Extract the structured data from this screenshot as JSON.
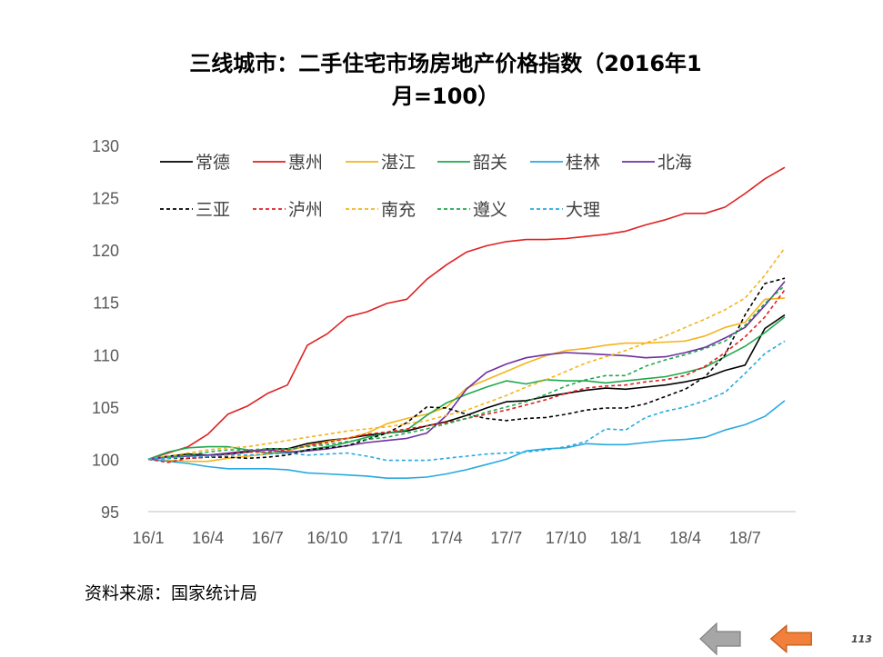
{
  "title_line1": "三线城市：二手住宅市场房地产价格指数（2016年1",
  "title_line2": "月=100）",
  "source": "资料来源：国家统计局",
  "page_number": "113",
  "nav": {
    "prev_color": "#a6a6a6",
    "next_color": "#f0803c"
  },
  "chart_data": {
    "type": "line",
    "title": "",
    "xlabel": "",
    "ylabel": "",
    "ylim": [
      95,
      130
    ],
    "yticks": [
      95,
      100,
      105,
      110,
      115,
      120,
      125,
      130
    ],
    "grid": false,
    "legend_position": "top-left",
    "x": [
      "16/1",
      "16/2",
      "16/3",
      "16/4",
      "16/5",
      "16/6",
      "16/7",
      "16/8",
      "16/9",
      "16/10",
      "16/11",
      "16/12",
      "17/1",
      "17/2",
      "17/3",
      "17/4",
      "17/5",
      "17/6",
      "17/7",
      "17/8",
      "17/9",
      "17/10",
      "17/11",
      "17/12",
      "18/1",
      "18/2",
      "18/3",
      "18/4",
      "18/5",
      "18/6",
      "18/7",
      "18/8",
      "18/9"
    ],
    "xtick_labels": [
      "16/1",
      "16/4",
      "16/7",
      "16/10",
      "17/1",
      "17/4",
      "17/7",
      "17/10",
      "18/1",
      "18/4",
      "18/7"
    ],
    "series": [
      {
        "name": "常德",
        "color": "#000000",
        "dash": false,
        "values": [
          100,
          100.3,
          100.5,
          100.4,
          100.5,
          100.7,
          101.0,
          101.0,
          101.5,
          101.8,
          102.0,
          102.3,
          102.5,
          102.7,
          103.2,
          103.6,
          104.2,
          104.9,
          105.5,
          105.6,
          106.0,
          106.3,
          106.6,
          106.8,
          106.7,
          106.9,
          107.1,
          107.4,
          107.8,
          108.5,
          109.0,
          112.5,
          113.8
        ]
      },
      {
        "name": "惠州",
        "color": "#e02020",
        "dash": false,
        "values": [
          100,
          100.6,
          101.2,
          102.4,
          104.3,
          105.1,
          106.3,
          107.1,
          110.9,
          112.0,
          113.6,
          114.1,
          114.9,
          115.3,
          117.2,
          118.6,
          119.8,
          120.4,
          120.8,
          121.0,
          121.0,
          121.1,
          121.3,
          121.5,
          121.8,
          122.4,
          122.9,
          123.5,
          123.5,
          124.1,
          125.4,
          126.8,
          127.9
        ]
      },
      {
        "name": "湛江",
        "color": "#f5b41b",
        "dash": false,
        "values": [
          100,
          99.9,
          99.8,
          99.8,
          100.1,
          100.3,
          100.5,
          100.8,
          101.3,
          101.7,
          102.0,
          102.5,
          103.4,
          103.9,
          104.3,
          105.0,
          106.8,
          107.6,
          108.4,
          109.2,
          109.9,
          110.4,
          110.6,
          110.9,
          111.1,
          111.1,
          111.2,
          111.3,
          111.8,
          112.6,
          113.1,
          115.3,
          115.4
        ]
      },
      {
        "name": "韶关",
        "color": "#1fa84b",
        "dash": false,
        "values": [
          100,
          100.7,
          101.1,
          101.2,
          101.2,
          100.9,
          100.6,
          100.6,
          100.9,
          101.2,
          101.6,
          102.1,
          102.5,
          102.8,
          104.2,
          105.4,
          106.2,
          106.9,
          107.5,
          107.2,
          107.6,
          107.5,
          107.5,
          107.3,
          107.5,
          107.7,
          107.9,
          108.3,
          108.8,
          109.8,
          110.8,
          112.1,
          113.6
        ]
      },
      {
        "name": "桂林",
        "color": "#27a9e1",
        "dash": false,
        "values": [
          100,
          99.8,
          99.6,
          99.3,
          99.1,
          99.1,
          99.1,
          99.0,
          98.7,
          98.6,
          98.5,
          98.4,
          98.2,
          98.2,
          98.3,
          98.6,
          99.0,
          99.5,
          100.0,
          100.8,
          101.0,
          101.1,
          101.5,
          101.4,
          101.4,
          101.6,
          101.8,
          101.9,
          102.1,
          102.8,
          103.3,
          104.1,
          105.6
        ]
      },
      {
        "name": "北海",
        "color": "#7030a0",
        "dash": false,
        "values": [
          100,
          100.2,
          100.3,
          100.4,
          100.6,
          100.8,
          100.9,
          100.7,
          100.8,
          101.0,
          101.3,
          101.6,
          101.8,
          102.0,
          102.5,
          104.2,
          106.7,
          108.3,
          109.1,
          109.7,
          110.0,
          110.2,
          110.1,
          110.0,
          109.9,
          109.7,
          109.8,
          110.2,
          110.7,
          111.6,
          112.6,
          114.7,
          117.0
        ]
      },
      {
        "name": "三亚",
        "color": "#000000",
        "dash": true,
        "values": [
          100,
          100.1,
          100.1,
          100.2,
          100.2,
          100.1,
          100.2,
          100.4,
          100.9,
          101.1,
          101.3,
          101.9,
          102.5,
          103.5,
          105.0,
          104.9,
          104.3,
          103.9,
          103.7,
          103.9,
          104.0,
          104.3,
          104.7,
          104.9,
          104.9,
          105.3,
          106.0,
          106.7,
          107.9,
          110.0,
          113.8,
          116.8,
          117.3
        ]
      },
      {
        "name": "泸州",
        "color": "#e02020",
        "dash": true,
        "values": [
          100,
          99.7,
          100.1,
          100.2,
          100.5,
          100.7,
          100.7,
          100.9,
          101.3,
          101.6,
          102.0,
          102.4,
          102.6,
          102.9,
          103.2,
          103.5,
          103.9,
          104.3,
          104.7,
          105.2,
          105.7,
          106.3,
          106.8,
          107.0,
          107.1,
          107.4,
          107.6,
          108.0,
          108.9,
          110.2,
          111.7,
          113.6,
          116.2
        ]
      },
      {
        "name": "南充",
        "color": "#f5b41b",
        "dash": true,
        "values": [
          100,
          100.3,
          100.6,
          100.9,
          101.1,
          101.2,
          101.5,
          101.8,
          102.1,
          102.4,
          102.7,
          102.9,
          103.1,
          103.4,
          103.7,
          104.2,
          104.7,
          105.4,
          106.1,
          106.9,
          107.6,
          108.4,
          109.2,
          109.8,
          110.4,
          111.1,
          111.8,
          112.6,
          113.4,
          114.3,
          115.4,
          117.6,
          120.2
        ]
      },
      {
        "name": "遵义",
        "color": "#1fa84b",
        "dash": true,
        "values": [
          100,
          100.2,
          100.4,
          100.7,
          100.9,
          100.9,
          101.0,
          101.0,
          101.2,
          101.4,
          101.7,
          101.9,
          102.1,
          102.5,
          102.9,
          103.4,
          103.9,
          104.5,
          105.0,
          105.5,
          106.2,
          107.0,
          107.6,
          108.0,
          108.0,
          108.9,
          109.5,
          110.0,
          110.6,
          111.3,
          112.8,
          114.9,
          116.6
        ]
      },
      {
        "name": "大理",
        "color": "#27a9e1",
        "dash": true,
        "values": [
          100,
          100.1,
          100.2,
          100.3,
          100.4,
          100.4,
          100.5,
          100.6,
          100.4,
          100.5,
          100.6,
          100.3,
          99.9,
          99.9,
          99.9,
          100.1,
          100.3,
          100.5,
          100.6,
          100.7,
          100.9,
          101.2,
          101.7,
          102.9,
          102.8,
          104.0,
          104.6,
          105.0,
          105.6,
          106.4,
          108.2,
          110.1,
          111.3
        ]
      }
    ]
  }
}
